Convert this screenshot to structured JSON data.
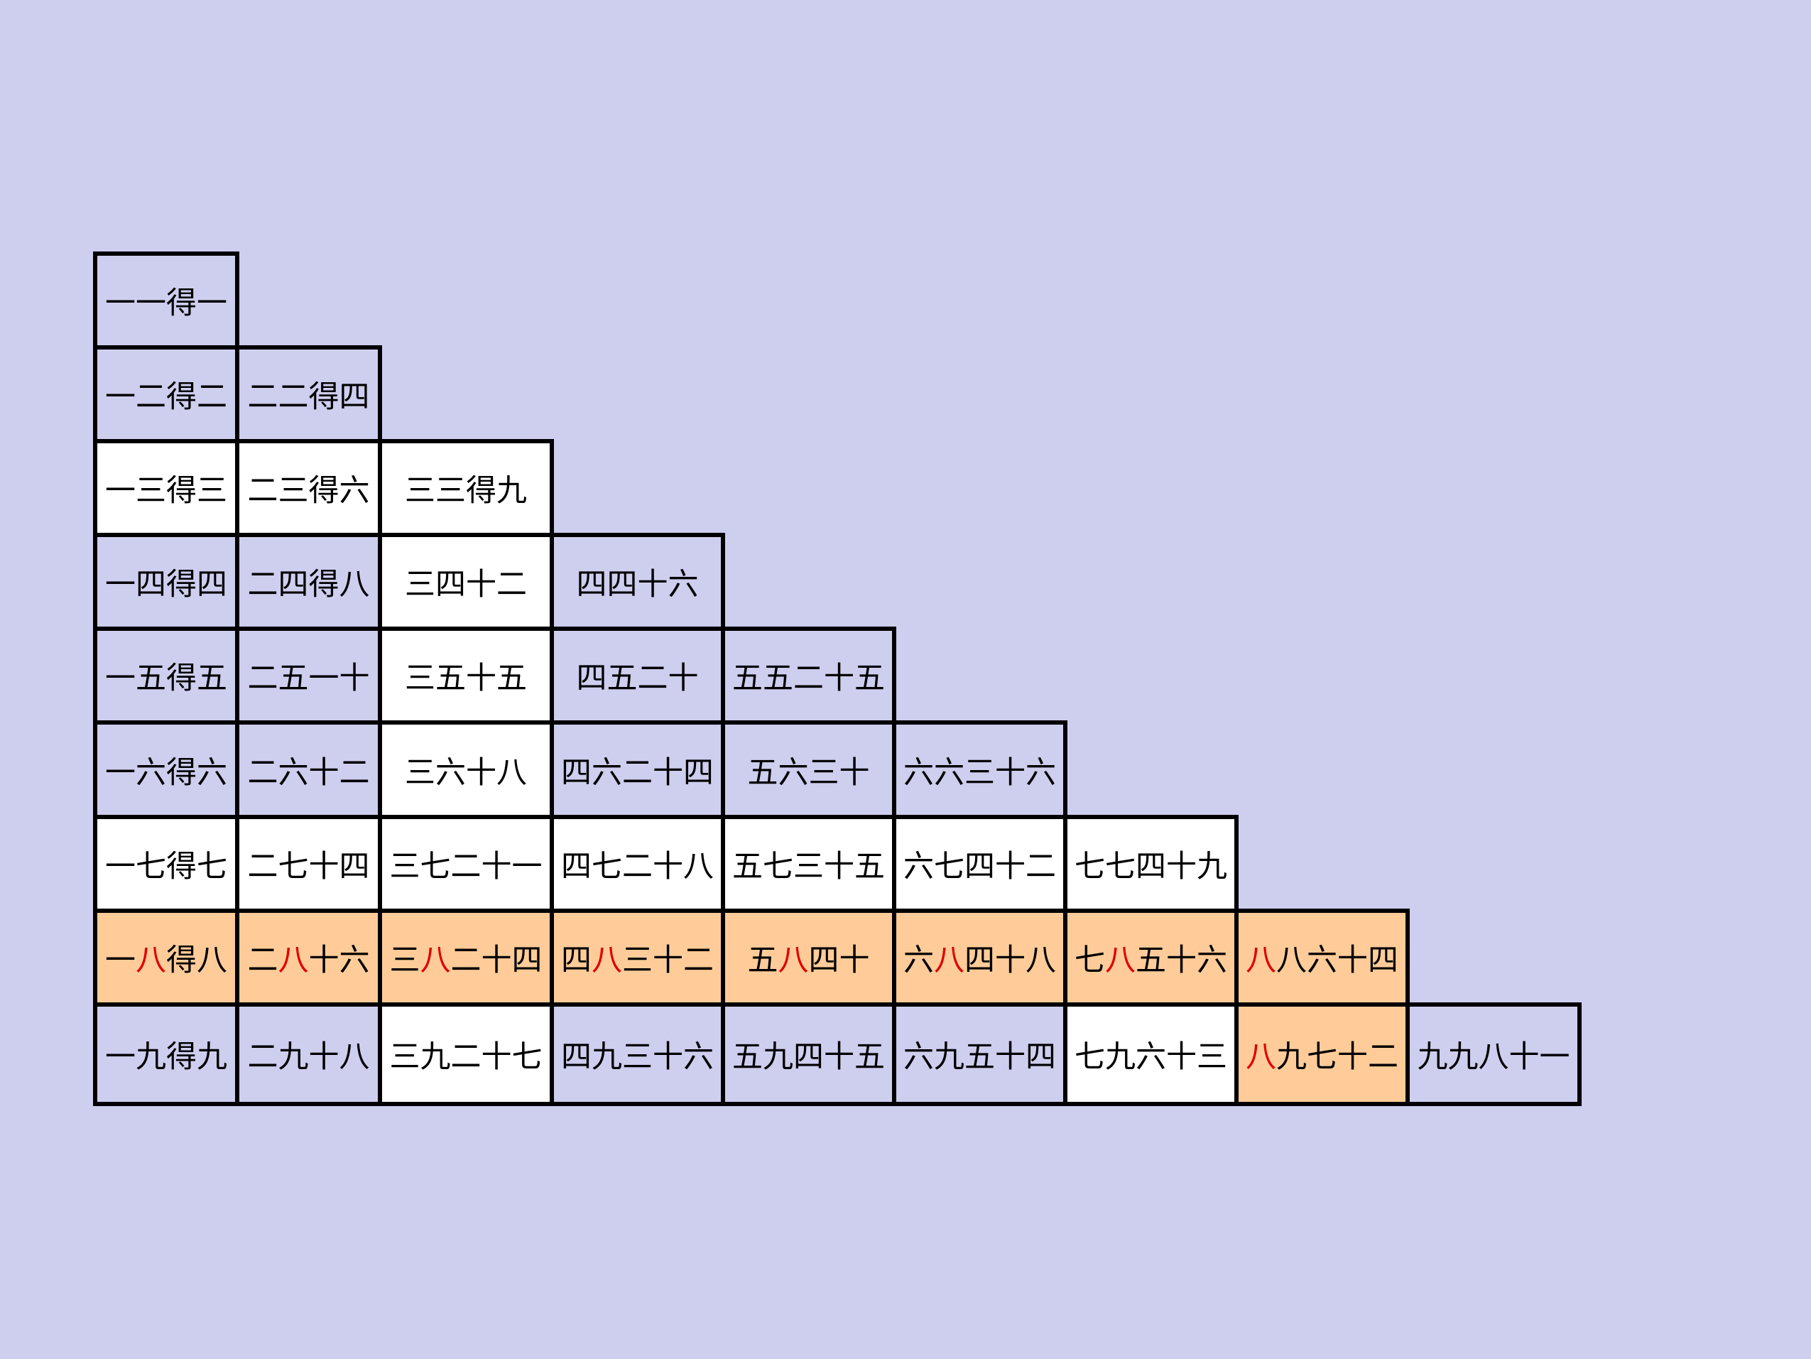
{
  "colors": {
    "background": "#ceceef",
    "white_cell": "#ffffff",
    "lavender_cell": "#ceceef",
    "orange_cell": "#ffcc99",
    "highlight_text": "#e00000",
    "border": "#000000"
  },
  "rows": [
    [
      {
        "text": "一一得一",
        "fill": "p"
      }
    ],
    [
      {
        "text": "一二得二",
        "fill": "p"
      },
      {
        "text": "二二得四",
        "fill": "p"
      }
    ],
    [
      {
        "text": "一三得三",
        "fill": "w"
      },
      {
        "text": "二三得六",
        "fill": "w"
      },
      {
        "text": "三三得九",
        "fill": "w"
      }
    ],
    [
      {
        "text": "一四得四",
        "fill": "p"
      },
      {
        "text": "二四得八",
        "fill": "p"
      },
      {
        "text": "三四十二",
        "fill": "w"
      },
      {
        "text": "四四十六",
        "fill": "p"
      }
    ],
    [
      {
        "text": "一五得五",
        "fill": "p"
      },
      {
        "text": "二五一十",
        "fill": "p"
      },
      {
        "text": "三五十五",
        "fill": "w"
      },
      {
        "text": "四五二十",
        "fill": "p"
      },
      {
        "text": "五五二十五",
        "fill": "p"
      }
    ],
    [
      {
        "text": "一六得六",
        "fill": "p"
      },
      {
        "text": "二六十二",
        "fill": "p"
      },
      {
        "text": "三六十八",
        "fill": "w"
      },
      {
        "text": "四六二十四",
        "fill": "p"
      },
      {
        "text": "五六三十",
        "fill": "p"
      },
      {
        "text": "六六三十六",
        "fill": "p"
      }
    ],
    [
      {
        "text": "一七得七",
        "fill": "w"
      },
      {
        "text": "二七十四",
        "fill": "w"
      },
      {
        "text": "三七二十一",
        "fill": "w"
      },
      {
        "text": "四七二十八",
        "fill": "w"
      },
      {
        "text": "五七三十五",
        "fill": "w"
      },
      {
        "text": "六七四十二",
        "fill": "w"
      },
      {
        "text": "七七四十九",
        "fill": "w"
      }
    ],
    [
      {
        "text": "一八得八",
        "fill": "o",
        "hl": 1
      },
      {
        "text": "二八十六",
        "fill": "o",
        "hl": 1
      },
      {
        "text": "三八二十四",
        "fill": "o",
        "hl": 1
      },
      {
        "text": "四八三十二",
        "fill": "o",
        "hl": 1
      },
      {
        "text": "五八四十",
        "fill": "o",
        "hl": 1
      },
      {
        "text": "六八四十八",
        "fill": "o",
        "hl": 1
      },
      {
        "text": "七八五十六",
        "fill": "o",
        "hl": 1
      },
      {
        "text": "八八六十四",
        "fill": "o",
        "hl": 0
      }
    ],
    [
      {
        "text": "一九得九",
        "fill": "p"
      },
      {
        "text": "二九十八",
        "fill": "p"
      },
      {
        "text": "三九二十七",
        "fill": "w"
      },
      {
        "text": "四九三十六",
        "fill": "p"
      },
      {
        "text": "五九四十五",
        "fill": "p"
      },
      {
        "text": "六九五十四",
        "fill": "p"
      },
      {
        "text": "七九六十三",
        "fill": "w"
      },
      {
        "text": "八九七十二",
        "fill": "o",
        "hl": 0
      },
      {
        "text": "九九八十一",
        "fill": "p"
      }
    ]
  ]
}
